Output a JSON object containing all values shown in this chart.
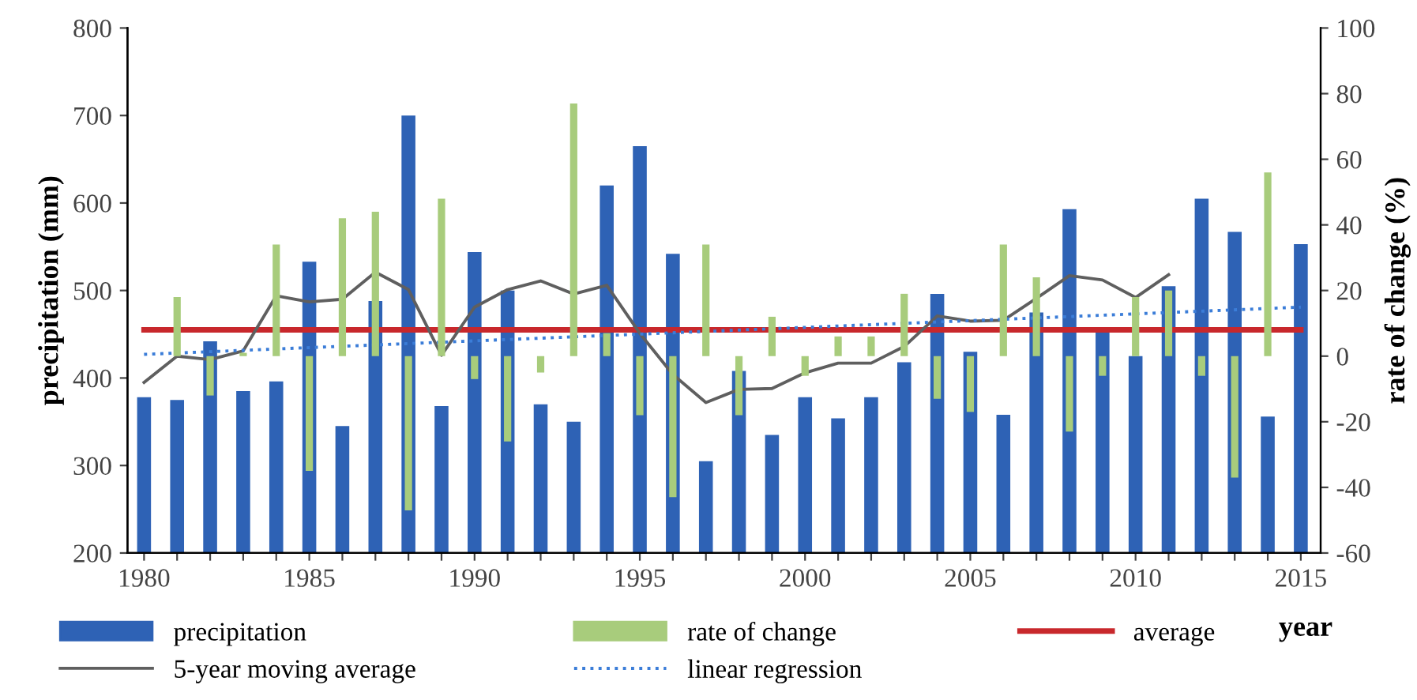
{
  "chart_data": {
    "type": "bar",
    "xlabel": "year",
    "ylabel": "precipitation (mm)",
    "y2label": "rate of change (%)",
    "x": [
      1980,
      1981,
      1982,
      1983,
      1984,
      1985,
      1986,
      1987,
      1988,
      1989,
      1990,
      1991,
      1992,
      1993,
      1994,
      1995,
      1996,
      1997,
      1998,
      1999,
      2000,
      2001,
      2002,
      2003,
      2004,
      2005,
      2006,
      2007,
      2008,
      2009,
      2010,
      2011,
      2012,
      2013,
      2014,
      2015
    ],
    "xlim": [
      1979.5,
      2015.6
    ],
    "xticks": [
      1980,
      {
        "value": 1981,
        "label": null
      },
      {
        "value": 1982,
        "label": null
      },
      {
        "value": 1983,
        "label": null
      },
      {
        "value": 1984,
        "label": null
      },
      1985,
      {
        "value": 1986,
        "label": null
      },
      {
        "value": 1987,
        "label": null
      },
      {
        "value": 1988,
        "label": null
      },
      {
        "value": 1989,
        "label": null
      },
      1990,
      {
        "value": 1991,
        "label": null
      },
      {
        "value": 1992,
        "label": null
      },
      {
        "value": 1993,
        "label": null
      },
      {
        "value": 1994,
        "label": null
      },
      1995,
      {
        "value": 1996,
        "label": null
      },
      {
        "value": 1997,
        "label": null
      },
      {
        "value": 1998,
        "label": null
      },
      {
        "value": 1999,
        "label": null
      },
      2000,
      {
        "value": 2001,
        "label": null
      },
      {
        "value": 2002,
        "label": null
      },
      {
        "value": 2003,
        "label": null
      },
      {
        "value": 2004,
        "label": null
      },
      2005,
      {
        "value": 2006,
        "label": null
      },
      {
        "value": 2007,
        "label": null
      },
      {
        "value": 2008,
        "label": null
      },
      {
        "value": 2009,
        "label": null
      },
      2010,
      {
        "value": 2011,
        "label": null
      },
      {
        "value": 2012,
        "label": null
      },
      {
        "value": 2013,
        "label": null
      },
      {
        "value": 2014,
        "label": null
      },
      2015
    ],
    "ylim": [
      200,
      800
    ],
    "yticks": [
      200,
      300,
      400,
      500,
      600,
      700,
      800
    ],
    "y2lim": [
      -60,
      100
    ],
    "y2ticks": [
      -60,
      -40,
      -20,
      0,
      20,
      40,
      60,
      80,
      100
    ],
    "legend": "bottom",
    "grid": false,
    "series": [
      {
        "name": "precipitation",
        "color": "#2e62b5",
        "values": [
          378,
          375,
          442,
          385,
          396,
          533,
          345,
          488,
          700,
          368,
          544,
          500,
          370,
          350,
          620,
          665,
          542,
          305,
          408,
          335,
          378,
          354,
          378,
          418,
          496,
          430,
          358,
          475,
          593,
          455,
          425,
          505,
          605,
          567,
          356,
          553
        ]
      },
      {
        "name": "rate of change",
        "type": "bar",
        "axis": "y2",
        "color": "#a8cc7c",
        "values": [
          null,
          18,
          -12,
          1,
          34,
          -35,
          42,
          44,
          -47,
          48,
          -7,
          -26,
          -5,
          77,
          7,
          -18,
          -43,
          34,
          -18,
          12,
          -6,
          6,
          6,
          19,
          -13,
          -17,
          34,
          24,
          -23,
          -6,
          18,
          20,
          -6,
          -37,
          56,
          null
        ]
      },
      {
        "name": "average",
        "type": "line",
        "color": "#c8282c",
        "line_style": "solid",
        "x": [
          1980,
          2015
        ],
        "values": [
          455,
          455
        ]
      },
      {
        "name": "5-year moving average",
        "type": "line",
        "color": "#5f5f5f",
        "line_style": "solid",
        "x": [
          1980,
          1981,
          1982,
          1983,
          1984,
          1985,
          1986,
          1987,
          1988,
          1989,
          1990,
          1991,
          1992,
          1993,
          1994,
          1995,
          1996,
          1997,
          1998,
          1999,
          2000,
          2001,
          2002,
          2003,
          2004,
          2005,
          2006,
          2007,
          2008,
          2009,
          2010,
          2011
        ],
        "values": [
          395,
          425,
          421,
          431,
          494,
          487,
          490,
          521,
          501,
          426,
          481,
          501,
          511,
          496,
          506,
          451,
          404,
          372,
          387,
          388,
          406,
          417,
          417,
          436,
          471,
          465,
          466,
          491,
          517,
          512,
          492,
          518
        ]
      },
      {
        "name": "linear regression",
        "type": "line",
        "color": "#3b7dd8",
        "line_style": "dotted",
        "x": [
          1980,
          2015
        ],
        "values": [
          427,
          481
        ]
      }
    ]
  }
}
